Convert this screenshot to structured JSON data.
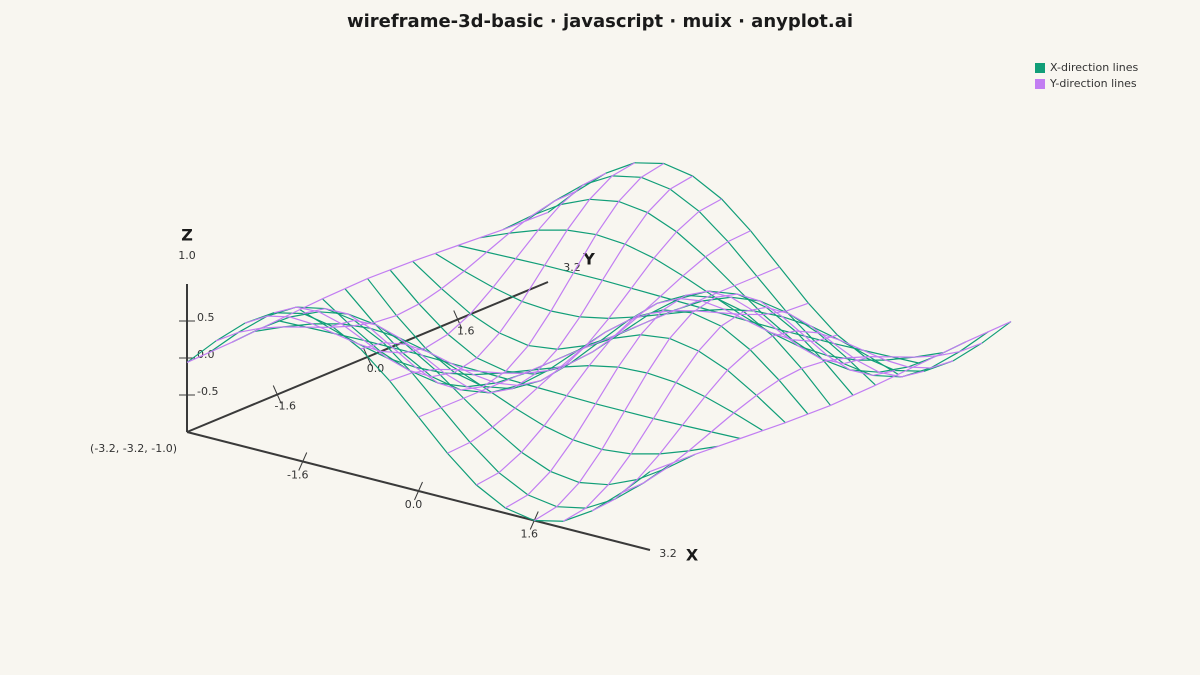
{
  "chart_data": {
    "type": "wireframe3d",
    "title": "wireframe-3d-basic · javascript · muix · anyplot.ai",
    "x_label": "X",
    "y_label": "Y",
    "z_label": "Z",
    "origin_label": "(-3.2, -3.2, -1.0)",
    "legend": "top-right",
    "series": [
      {
        "name": "X-direction lines",
        "color": "#119e78"
      },
      {
        "name": "Y-direction lines",
        "color": "#c27ef2"
      }
    ],
    "x": [
      -3.2,
      -2.8,
      -2.4,
      -2.0,
      -1.6,
      -1.2,
      -0.8,
      -0.4,
      0,
      0.4,
      0.8,
      1.2,
      1.6,
      2.0,
      2.4,
      2.8,
      3.2
    ],
    "y": [
      -3.2,
      -2.8,
      -2.4,
      -2.0,
      -1.6,
      -1.2,
      -0.8,
      -0.4,
      0,
      0.4,
      0.8,
      1.2,
      1.6,
      2.0,
      2.4,
      2.8,
      3.2
    ],
    "z": [
      [
        -0.06,
        0.33,
        0.67,
        0.91,
        1.0,
        0.93,
        0.72,
        0.39,
        0,
        -0.39,
        -0.72,
        -0.93,
        -1.0,
        -0.91,
        -0.67,
        -0.33,
        0.06
      ],
      [
        -0.05,
        0.32,
        0.64,
        0.86,
        0.94,
        0.88,
        0.68,
        0.37,
        0,
        -0.37,
        -0.68,
        -0.88,
        -0.94,
        -0.86,
        -0.64,
        -0.32,
        0.05
      ],
      [
        -0.04,
        0.25,
        0.5,
        0.67,
        0.74,
        0.69,
        0.53,
        0.29,
        0,
        -0.29,
        -0.53,
        -0.69,
        -0.74,
        -0.67,
        -0.5,
        -0.25,
        0.04
      ],
      [
        -0.02,
        0.14,
        0.28,
        0.38,
        0.42,
        0.39,
        0.3,
        0.16,
        0,
        -0.16,
        -0.3,
        -0.39,
        -0.42,
        -0.38,
        -0.28,
        -0.14,
        0.02
      ],
      [
        0,
        0.01,
        0.02,
        0.03,
        0.03,
        0.03,
        0.02,
        0.01,
        0,
        -0.01,
        -0.02,
        -0.03,
        -0.03,
        -0.03,
        -0.02,
        -0.01,
        0
      ],
      [
        0.02,
        -0.12,
        -0.24,
        -0.33,
        -0.36,
        -0.34,
        -0.26,
        -0.14,
        0,
        0.14,
        0.26,
        0.34,
        0.36,
        0.33,
        0.24,
        0.12,
        -0.02
      ],
      [
        0.04,
        -0.23,
        -0.47,
        -0.63,
        -0.7,
        -0.65,
        -0.5,
        -0.27,
        0,
        0.27,
        0.5,
        0.65,
        0.7,
        0.63,
        0.47,
        0.23,
        -0.04
      ],
      [
        0.05,
        -0.31,
        -0.62,
        -0.84,
        -0.92,
        -0.86,
        -0.66,
        -0.36,
        0,
        0.36,
        0.66,
        0.86,
        0.92,
        0.84,
        0.62,
        0.31,
        -0.05
      ],
      [
        0.06,
        -0.34,
        -0.68,
        -0.91,
        -1,
        -0.93,
        -0.72,
        -0.39,
        0,
        0.39,
        0.72,
        0.93,
        1,
        0.91,
        0.68,
        0.34,
        -0.06
      ],
      [
        0.05,
        -0.31,
        -0.62,
        -0.84,
        -0.92,
        -0.86,
        -0.66,
        -0.36,
        0,
        0.36,
        0.66,
        0.86,
        0.92,
        0.84,
        0.62,
        0.31,
        -0.05
      ],
      [
        0.04,
        -0.23,
        -0.47,
        -0.63,
        -0.7,
        -0.65,
        -0.5,
        -0.27,
        0,
        0.27,
        0.5,
        0.65,
        0.7,
        0.63,
        0.47,
        0.23,
        -0.04
      ],
      [
        0.02,
        -0.12,
        -0.24,
        -0.33,
        -0.36,
        -0.34,
        -0.26,
        -0.14,
        0,
        0.14,
        0.26,
        0.34,
        0.36,
        0.33,
        0.24,
        0.12,
        -0.02
      ],
      [
        0,
        0.01,
        0.02,
        0.03,
        0.03,
        0.03,
        0.02,
        0.01,
        0,
        -0.01,
        -0.02,
        -0.03,
        -0.03,
        -0.03,
        -0.02,
        -0.01,
        0
      ],
      [
        -0.02,
        0.14,
        0.28,
        0.38,
        0.42,
        0.39,
        0.3,
        0.16,
        0,
        -0.16,
        -0.3,
        -0.39,
        -0.42,
        -0.38,
        -0.28,
        -0.14,
        0.02
      ],
      [
        -0.04,
        0.25,
        0.5,
        0.67,
        0.74,
        0.69,
        0.53,
        0.29,
        0,
        -0.29,
        -0.53,
        -0.69,
        -0.74,
        -0.67,
        -0.5,
        -0.25,
        0.04
      ],
      [
        -0.05,
        0.32,
        0.64,
        0.86,
        0.94,
        0.88,
        0.68,
        0.37,
        0,
        -0.37,
        -0.68,
        -0.88,
        -0.94,
        -0.86,
        -0.64,
        -0.32,
        0.05
      ],
      [
        -0.06,
        0.33,
        0.67,
        0.91,
        1.0,
        0.93,
        0.72,
        0.39,
        0,
        -0.39,
        -0.72,
        -0.93,
        -1.0,
        -0.91,
        -0.67,
        -0.33,
        0.06
      ]
    ],
    "xlim": [
      -3.2,
      3.2
    ],
    "ylim": [
      -3.2,
      3.2
    ],
    "zlim": [
      -1,
      1
    ],
    "xticks": [
      -1.6,
      {
        "value": 0,
        "label": "0.0"
      },
      1.6,
      3.2
    ],
    "yticks": [
      -1.6,
      {
        "value": 0,
        "label": "0.0"
      },
      1.6,
      3.2
    ],
    "zticks": [
      -0.5,
      {
        "value": 0,
        "label": "0.0"
      },
      0.5,
      {
        "value": 1,
        "label": "1.0"
      }
    ]
  }
}
